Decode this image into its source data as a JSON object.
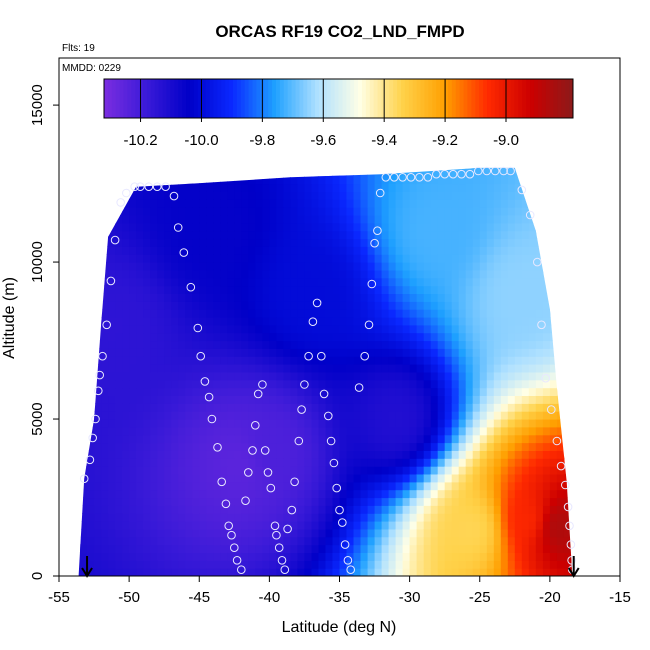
{
  "chart_data": {
    "type": "heatmap",
    "title": "ORCAS RF19 CO2_LND_FMPD",
    "annotations": [
      "Flts: 19",
      "MMDD: 0229"
    ],
    "xlabel": "Latitude (deg N)",
    "ylabel": "Altitude (m)",
    "xlim": [
      -55,
      -15
    ],
    "ylim": [
      0,
      16500
    ],
    "xticks": [
      -55,
      -50,
      -45,
      -40,
      -35,
      -30,
      -25,
      -20,
      -15
    ],
    "yticks": [
      0,
      5000,
      10000,
      15000
    ],
    "colorbar": {
      "range": [
        -10.32,
        -8.78
      ],
      "ticks": [
        -10.2,
        -10.0,
        -9.8,
        -9.6,
        -9.4,
        -9.2,
        -9.0
      ],
      "tick_labels": [
        "-10.2",
        "-10.0",
        "-9.8",
        "-9.6",
        "-9.4",
        "-9.2",
        "-9.0"
      ],
      "colors": [
        "#7b2ee0",
        "#3a1ad8",
        "#0000c8",
        "#0a28ff",
        "#1ea0ff",
        "#aee0ff",
        "#ffffe6",
        "#ffd24a",
        "#ff9f00",
        "#ff2a00",
        "#cc0000",
        "#8c1a1a"
      ]
    },
    "domain_outline": [
      [
        -53.6,
        0
      ],
      [
        -53.2,
        3100
      ],
      [
        -52.5,
        5000
      ],
      [
        -52.0,
        8000
      ],
      [
        -51.5,
        10800
      ],
      [
        -49.5,
        12400
      ],
      [
        -45.5,
        12500
      ],
      [
        -38.5,
        12700
      ],
      [
        -32.0,
        12800
      ],
      [
        -25.0,
        13000
      ],
      [
        -22.5,
        13000
      ],
      [
        -21.0,
        11000
      ],
      [
        -20.0,
        8500
      ],
      [
        -19.5,
        6000
      ],
      [
        -18.8,
        3000
      ],
      [
        -18.4,
        0
      ]
    ],
    "field_features": [
      {
        "lat": -42.0,
        "alt": 3600,
        "value": -10.25
      },
      {
        "lat": -40.0,
        "alt": 4000,
        "value": -10.22
      },
      {
        "lat": -51.0,
        "alt": 8000,
        "value": -10.15
      },
      {
        "lat": -44.0,
        "alt": 11000,
        "value": -10.05
      },
      {
        "lat": -37.0,
        "alt": 9000,
        "value": -10.0
      },
      {
        "lat": -31.0,
        "alt": 5000,
        "value": -10.12
      },
      {
        "lat": -28.0,
        "alt": 11000,
        "value": -9.72
      },
      {
        "lat": -22.0,
        "alt": 9000,
        "value": -9.65
      },
      {
        "lat": -21.5,
        "alt": 1800,
        "value": -9.05
      },
      {
        "lat": -19.5,
        "alt": 1600,
        "value": -8.85
      },
      {
        "lat": -25.5,
        "alt": 1500,
        "value": -9.35
      }
    ],
    "samples": [
      [
        -53.2,
        3100
      ],
      [
        -52.8,
        3700
      ],
      [
        -52.6,
        4400
      ],
      [
        -52.4,
        5000
      ],
      [
        -52.2,
        5900
      ],
      [
        -52.1,
        6400
      ],
      [
        -51.9,
        7000
      ],
      [
        -51.6,
        8000
      ],
      [
        -51.3,
        9400
      ],
      [
        -51.0,
        10700
      ],
      [
        -50.6,
        11900
      ],
      [
        -50.2,
        12200
      ],
      [
        -49.6,
        12400
      ],
      [
        -49.2,
        12400
      ],
      [
        -48.6,
        12400
      ],
      [
        -48.0,
        12400
      ],
      [
        -47.4,
        12400
      ],
      [
        -46.8,
        12100
      ],
      [
        -46.5,
        11100
      ],
      [
        -46.1,
        10300
      ],
      [
        -45.6,
        9200
      ],
      [
        -45.1,
        7900
      ],
      [
        -44.9,
        7000
      ],
      [
        -44.6,
        6200
      ],
      [
        -44.3,
        5700
      ],
      [
        -44.1,
        5000
      ],
      [
        -43.7,
        4100
      ],
      [
        -43.4,
        3000
      ],
      [
        -43.1,
        2300
      ],
      [
        -42.9,
        1600
      ],
      [
        -42.7,
        1300
      ],
      [
        -42.5,
        900
      ],
      [
        -42.3,
        500
      ],
      [
        -42.0,
        200
      ],
      [
        -41.7,
        2400
      ],
      [
        -41.5,
        3300
      ],
      [
        -41.2,
        4000
      ],
      [
        -41.0,
        4800
      ],
      [
        -40.8,
        5800
      ],
      [
        -40.5,
        6100
      ],
      [
        -40.3,
        4000
      ],
      [
        -40.1,
        3300
      ],
      [
        -39.9,
        2800
      ],
      [
        -39.6,
        1600
      ],
      [
        -39.5,
        1300
      ],
      [
        -39.3,
        900
      ],
      [
        -39.1,
        500
      ],
      [
        -38.9,
        200
      ],
      [
        -38.7,
        1500
      ],
      [
        -38.4,
        2100
      ],
      [
        -38.2,
        3000
      ],
      [
        -37.9,
        4300
      ],
      [
        -37.7,
        5300
      ],
      [
        -37.5,
        6100
      ],
      [
        -37.2,
        7000
      ],
      [
        -36.9,
        8100
      ],
      [
        -36.6,
        8700
      ],
      [
        -36.3,
        7000
      ],
      [
        -36.1,
        5800
      ],
      [
        -35.8,
        5100
      ],
      [
        -35.6,
        4300
      ],
      [
        -35.4,
        3600
      ],
      [
        -35.2,
        2800
      ],
      [
        -35.0,
        2100
      ],
      [
        -34.8,
        1700
      ],
      [
        -34.6,
        1000
      ],
      [
        -34.4,
        500
      ],
      [
        -34.2,
        200
      ],
      [
        -33.6,
        6000
      ],
      [
        -33.2,
        7000
      ],
      [
        -32.9,
        8000
      ],
      [
        -32.7,
        9300
      ],
      [
        -32.5,
        10600
      ],
      [
        -32.3,
        11000
      ],
      [
        -32.1,
        12200
      ],
      [
        -31.7,
        12700
      ],
      [
        -31.1,
        12700
      ],
      [
        -30.5,
        12700
      ],
      [
        -29.9,
        12700
      ],
      [
        -29.3,
        12700
      ],
      [
        -28.7,
        12700
      ],
      [
        -28.1,
        12800
      ],
      [
        -27.5,
        12800
      ],
      [
        -26.9,
        12800
      ],
      [
        -26.3,
        12800
      ],
      [
        -25.7,
        12800
      ],
      [
        -25.1,
        12900
      ],
      [
        -24.5,
        12900
      ],
      [
        -23.9,
        12900
      ],
      [
        -23.3,
        12900
      ],
      [
        -22.8,
        12900
      ],
      [
        -22.0,
        12300
      ],
      [
        -21.4,
        11500
      ],
      [
        -20.9,
        10000
      ],
      [
        -20.6,
        8000
      ],
      [
        -20.3,
        6300
      ],
      [
        -19.9,
        5300
      ],
      [
        -19.5,
        4300
      ],
      [
        -19.2,
        3500
      ],
      [
        -18.9,
        2900
      ],
      [
        -18.7,
        2200
      ],
      [
        -18.6,
        1600
      ],
      [
        -18.5,
        1000
      ],
      [
        -18.45,
        500
      ],
      [
        -18.4,
        200
      ]
    ],
    "markers": [
      {
        "lat": -53.0,
        "alt": 0
      },
      {
        "lat": -18.3,
        "alt": 0
      }
    ]
  }
}
